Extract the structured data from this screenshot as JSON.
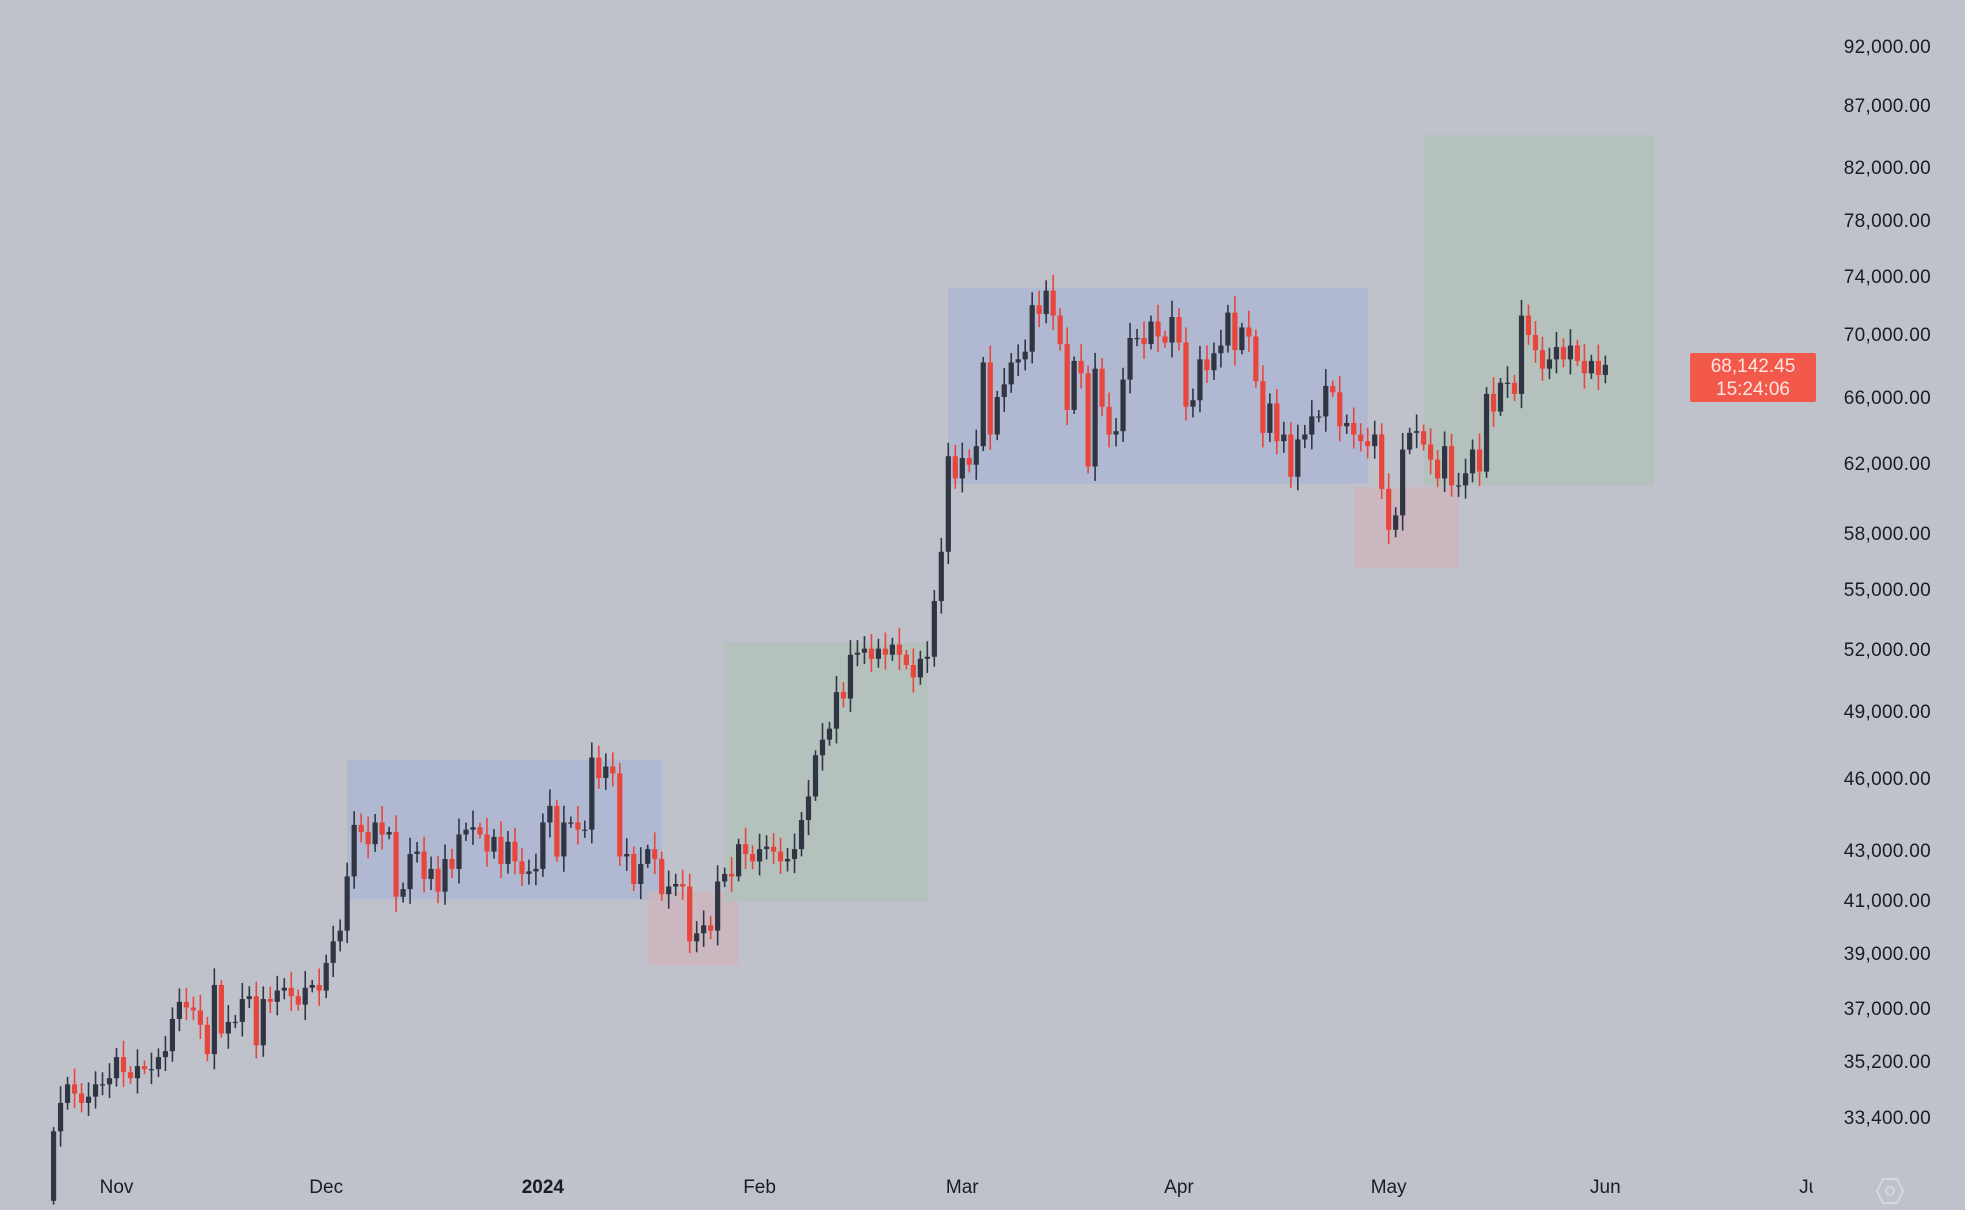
{
  "chart_data": {
    "type": "candlestick",
    "title": "",
    "y_scale": "log",
    "ylim": [
      32000,
      96000
    ],
    "grid": false,
    "colors": {
      "up": "#2f3542",
      "down": "#e8453c",
      "background": "#c0c2cb"
    },
    "y_ticks": [
      "92,000.00",
      "87,000.00",
      "82,000.00",
      "78,000.00",
      "74,000.00",
      "70,000.00",
      "66,000.00",
      "62,000.00",
      "58,000.00",
      "55,000.00",
      "52,000.00",
      "49,000.00",
      "46,000.00",
      "43,000.00",
      "41,000.00",
      "39,000.00",
      "37,000.00",
      "35,200.00",
      "33,400.00"
    ],
    "y_tick_values": [
      92000,
      87000,
      82000,
      78000,
      74000,
      70000,
      66000,
      62000,
      58000,
      55000,
      52000,
      49000,
      46000,
      43000,
      41000,
      39000,
      37000,
      35200,
      33400
    ],
    "x_ticks": [
      {
        "label": "Nov",
        "date": "2023-11-01",
        "bold": false
      },
      {
        "label": "Dec",
        "date": "2023-12-01",
        "bold": false
      },
      {
        "label": "2024",
        "date": "2024-01-01",
        "bold": true
      },
      {
        "label": "Feb",
        "date": "2024-02-01",
        "bold": false
      },
      {
        "label": "Mar",
        "date": "2024-03-01",
        "bold": false
      },
      {
        "label": "Apr",
        "date": "2024-04-01",
        "bold": false
      },
      {
        "label": "May",
        "date": "2024-05-01",
        "bold": false
      },
      {
        "label": "Jun",
        "date": "2024-06-01",
        "bold": false
      },
      {
        "label": "Jul",
        "date": "2024-07-01",
        "bold": false
      }
    ],
    "start_date": "2023-10-23",
    "first_open": 30900,
    "closes": [
      33000,
      33900,
      34500,
      34200,
      33900,
      34100,
      34500,
      34500,
      34700,
      35400,
      34900,
      34700,
      35100,
      35000,
      35000,
      35400,
      35600,
      36700,
      37300,
      37100,
      37000,
      36500,
      35500,
      37900,
      36200,
      36600,
      36600,
      37400,
      37500,
      35800,
      37400,
      37300,
      37700,
      37800,
      37500,
      37200,
      37800,
      37900,
      37700,
      38700,
      39500,
      39900,
      42000,
      44100,
      43800,
      43300,
      44200,
      43700,
      43800,
      41200,
      41500,
      42900,
      43000,
      41900,
      42300,
      41400,
      42700,
      42300,
      43700,
      43900,
      44000,
      43700,
      43000,
      43600,
      42500,
      43400,
      42600,
      42100,
      42200,
      42300,
      44200,
      44900,
      42800,
      44200,
      44200,
      43900,
      43900,
      47000,
      46100,
      46600,
      46300,
      42800,
      42900,
      41700,
      42500,
      43100,
      42700,
      41300,
      41600,
      41700,
      41600,
      39500,
      39800,
      40100,
      39900,
      41800,
      42100,
      42000,
      43300,
      42900,
      42600,
      43100,
      43200,
      43000,
      42600,
      42700,
      43100,
      44300,
      45300,
      47100,
      47800,
      48300,
      50000,
      49700,
      51800,
      51900,
      52100,
      51600,
      52100,
      51800,
      52300,
      51800,
      51300,
      50700,
      51600,
      51700,
      54500,
      57100,
      62500,
      61200,
      62400,
      62000,
      63100,
      68300,
      63800,
      66100,
      66900,
      68300,
      68500,
      69000,
      72100,
      71500,
      73100,
      71400,
      69500,
      65300,
      68400,
      67600,
      61900,
      67900,
      65500,
      63800,
      64000,
      67200,
      69900,
      69900,
      69500,
      71000,
      70000,
      69600,
      71300,
      69600,
      65500,
      65900,
      68500,
      67800,
      68900,
      69400,
      71600,
      69100,
      70600,
      70000,
      67100,
      63900,
      65700,
      63400,
      63800,
      61300,
      63500,
      63800,
      64900,
      64900,
      66800,
      66400,
      64300,
      64500,
      63800,
      63400,
      63100,
      63800,
      60600,
      58300,
      59100,
      62900,
      63900,
      64000,
      63200,
      62300,
      61200,
      63100,
      60800,
      60800,
      61500,
      62900,
      61600,
      66300,
      65200,
      67000,
      67000,
      66300,
      71400,
      70100,
      69100,
      67900,
      68500,
      69300,
      68500,
      69400,
      68400,
      67600,
      68400,
      67500,
      68142.45
    ],
    "zones": [
      {
        "kind": "range",
        "color": "#aeb6d2",
        "from": "2023-12-04",
        "to": "2024-01-18",
        "top": 46900,
        "bottom": 41100
      },
      {
        "kind": "breakdown",
        "color": "#cbb5bd",
        "from": "2024-01-16",
        "to": "2024-01-29",
        "top": 41400,
        "bottom": 38600
      },
      {
        "kind": "rally",
        "color": "#b2c1bb",
        "from": "2024-01-27",
        "to": "2024-02-25",
        "top": 52400,
        "bottom": 41000
      },
      {
        "kind": "range",
        "color": "#aeb6d2",
        "from": "2024-02-28",
        "to": "2024-04-28",
        "top": 73300,
        "bottom": 60900
      },
      {
        "kind": "breakdown",
        "color": "#cbb5bd",
        "from": "2024-04-26",
        "to": "2024-05-11",
        "top": 60700,
        "bottom": 56200
      },
      {
        "kind": "rally",
        "color": "#b2c1bb",
        "from": "2024-05-06",
        "to": "2024-06-08",
        "top": 84700,
        "bottom": 60800
      }
    ],
    "last_price": "68,142.45",
    "countdown": "15:24:06",
    "last_price_color": "#f2594b"
  },
  "footer": {
    "settings_icon": "hexagon-gear-icon"
  }
}
